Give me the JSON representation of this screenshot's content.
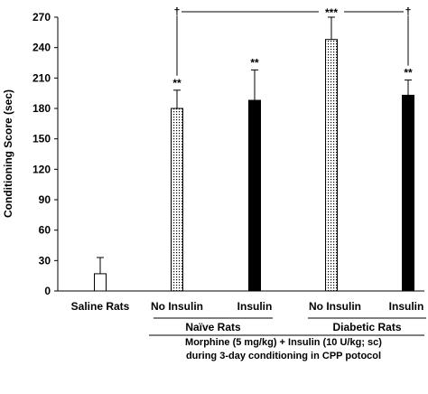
{
  "chart_data": {
    "type": "bar",
    "categories": [
      "Saline Rats",
      "No Insulin",
      "Insulin",
      "No Insulin",
      "Insulin"
    ],
    "values": [
      17,
      180,
      188,
      248,
      193
    ],
    "errors": [
      16,
      18,
      30,
      22,
      15
    ],
    "significance": [
      "",
      "**",
      "**",
      "***",
      "**"
    ],
    "bar_styles": [
      "open",
      "dotted",
      "solid",
      "dotted",
      "solid"
    ],
    "ylabel": "Conditioning Score (sec)",
    "ylim": [
      0,
      270
    ],
    "yticks": [
      0,
      30,
      60,
      90,
      120,
      150,
      180,
      210,
      240,
      270
    ],
    "groups": [
      {
        "label": "Naïve Rats",
        "categories": [
          1,
          2
        ]
      },
      {
        "label": "Diabetic Rats",
        "categories": [
          3,
          4
        ]
      }
    ],
    "comparisons": [
      {
        "from": 1,
        "to": 3,
        "marker": "†"
      },
      {
        "from": 3,
        "to": 4,
        "marker": "†"
      }
    ],
    "footnote": {
      "line1": "Morphine (5 mg/kg)  +  Insulin (10 U/kg; sc)",
      "line2": "during 3-day conditioning in CPP potocol"
    },
    "grid": false,
    "legend": "none"
  }
}
